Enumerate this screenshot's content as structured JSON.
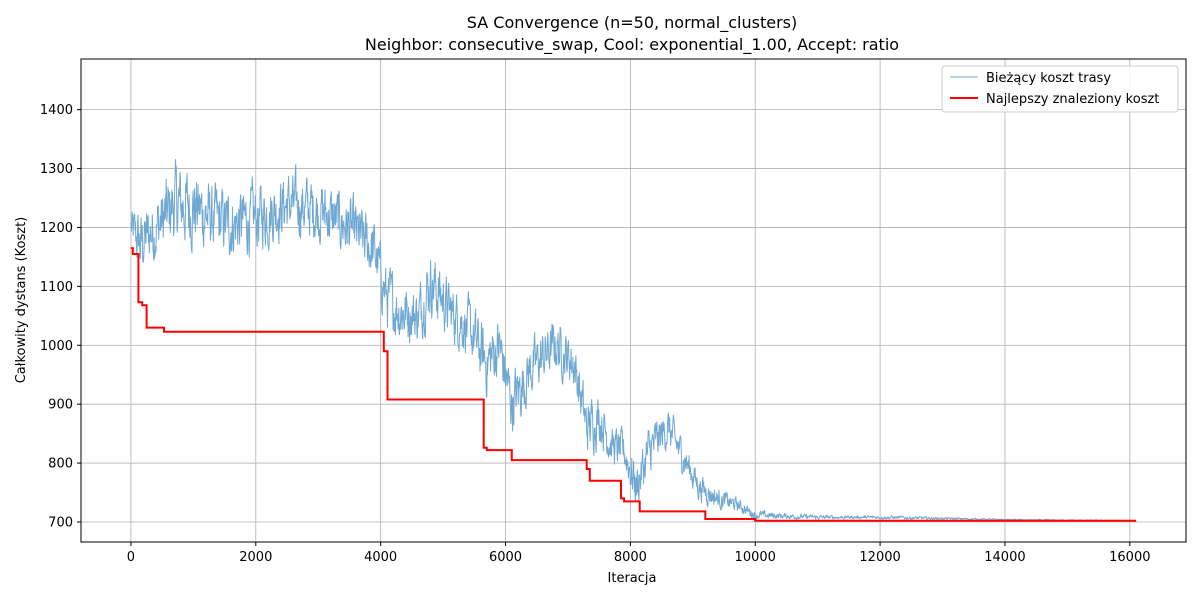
{
  "chart_data": {
    "type": "line",
    "title": "SA Convergence (n=50, normal_clusters)",
    "subtitle": "Neighbor: consecutive_swap, Cool: exponential_1.00, Accept: ratio",
    "xlabel": "Iteracja",
    "ylabel": "Całkowity dystans (Koszt)",
    "xlim": [
      -800,
      16900
    ],
    "ylim": [
      666,
      1486
    ],
    "xticks": [
      0,
      2000,
      4000,
      6000,
      8000,
      10000,
      12000,
      14000,
      16000
    ],
    "yticks": [
      700,
      800,
      900,
      1000,
      1100,
      1200,
      1300,
      1400
    ],
    "grid": true,
    "legend_position": "top-right",
    "series": [
      {
        "name": "Bieżący koszt trasy",
        "color": "#6fa8d2",
        "style": "noisy",
        "x": [
          0,
          150,
          300,
          500,
          700,
          1000,
          1300,
          1600,
          2000,
          2500,
          3000,
          3500,
          3900,
          4100,
          4300,
          4600,
          4800,
          5100,
          5400,
          5700,
          5900,
          6100,
          6400,
          6800,
          7100,
          7300,
          7500,
          7700,
          7900,
          8100,
          8300,
          8600,
          8900,
          9100,
          9400,
          9700,
          10000,
          10500,
          11000,
          11500,
          12000,
          12500,
          13000,
          14000,
          15000,
          16100
        ],
        "y": [
          1200,
          1170,
          1190,
          1210,
          1240,
          1235,
          1215,
          1205,
          1215,
          1240,
          1230,
          1200,
          1160,
          1080,
          1060,
          1050,
          1110,
          1060,
          1030,
          970,
          1000,
          900,
          960,
          1000,
          970,
          860,
          880,
          830,
          820,
          760,
          820,
          860,
          800,
          760,
          740,
          730,
          712,
          710,
          708,
          708,
          708,
          707,
          706,
          704,
          703,
          702
        ],
        "amp": [
          35,
          60,
          55,
          65,
          70,
          70,
          60,
          60,
          60,
          55,
          55,
          55,
          55,
          55,
          55,
          50,
          60,
          50,
          50,
          60,
          55,
          55,
          50,
          45,
          45,
          50,
          45,
          35,
          35,
          45,
          45,
          35,
          30,
          25,
          18,
          12,
          8,
          5,
          4,
          3,
          3,
          3,
          2,
          1,
          1,
          1
        ]
      },
      {
        "name": "Najlepszy znaleziony koszt",
        "color": "#ff0000",
        "style": "step",
        "x": [
          0,
          30,
          120,
          180,
          250,
          530,
          4050,
          4110,
          5600,
          5650,
          5700,
          6100,
          7300,
          7350,
          7850,
          7900,
          8150,
          9200,
          9350,
          10000,
          16100
        ],
        "y": [
          1165,
          1155,
          1073,
          1068,
          1030,
          1023,
          990,
          908,
          908,
          826,
          822,
          805,
          790,
          770,
          740,
          735,
          718,
          705,
          705,
          702,
          702
        ]
      }
    ]
  }
}
